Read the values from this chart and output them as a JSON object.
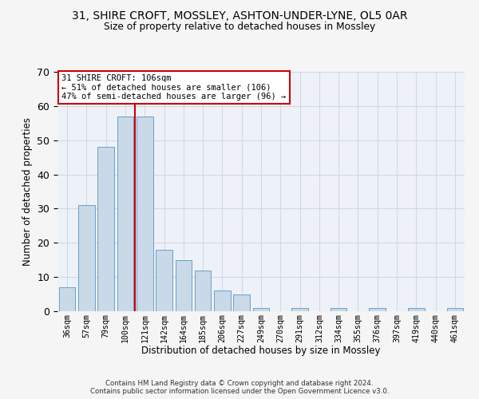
{
  "title1": "31, SHIRE CROFT, MOSSLEY, ASHTON-UNDER-LYNE, OL5 0AR",
  "title2": "Size of property relative to detached houses in Mossley",
  "xlabel": "Distribution of detached houses by size in Mossley",
  "ylabel": "Number of detached properties",
  "bar_values": [
    7,
    31,
    48,
    57,
    57,
    18,
    15,
    12,
    6,
    5,
    1,
    0,
    1,
    0,
    1,
    0,
    1,
    0,
    1,
    0,
    1
  ],
  "x_labels": [
    "36sqm",
    "57sqm",
    "79sqm",
    "100sqm",
    "121sqm",
    "142sqm",
    "164sqm",
    "185sqm",
    "206sqm",
    "227sqm",
    "249sqm",
    "270sqm",
    "291sqm",
    "312sqm",
    "334sqm",
    "355sqm",
    "376sqm",
    "397sqm",
    "419sqm",
    "440sqm",
    "461sqm"
  ],
  "bar_color": "#c9d9e8",
  "bar_edge_color": "#6b9fc8",
  "vline_x": 3.5,
  "vline_color": "#cc0000",
  "annotation_text": "31 SHIRE CROFT: 106sqm\n← 51% of detached houses are smaller (106)\n47% of semi-detached houses are larger (96) →",
  "annotation_box_color": "#ffffff",
  "annotation_box_edge": "#cc0000",
  "ylim": [
    0,
    70
  ],
  "yticks": [
    0,
    10,
    20,
    30,
    40,
    50,
    60,
    70
  ],
  "grid_color": "#d0d8e8",
  "background_color": "#eef2f8",
  "fig_background": "#f5f5f5",
  "footer": "Contains HM Land Registry data © Crown copyright and database right 2024.\nContains public sector information licensed under the Open Government Licence v3.0."
}
